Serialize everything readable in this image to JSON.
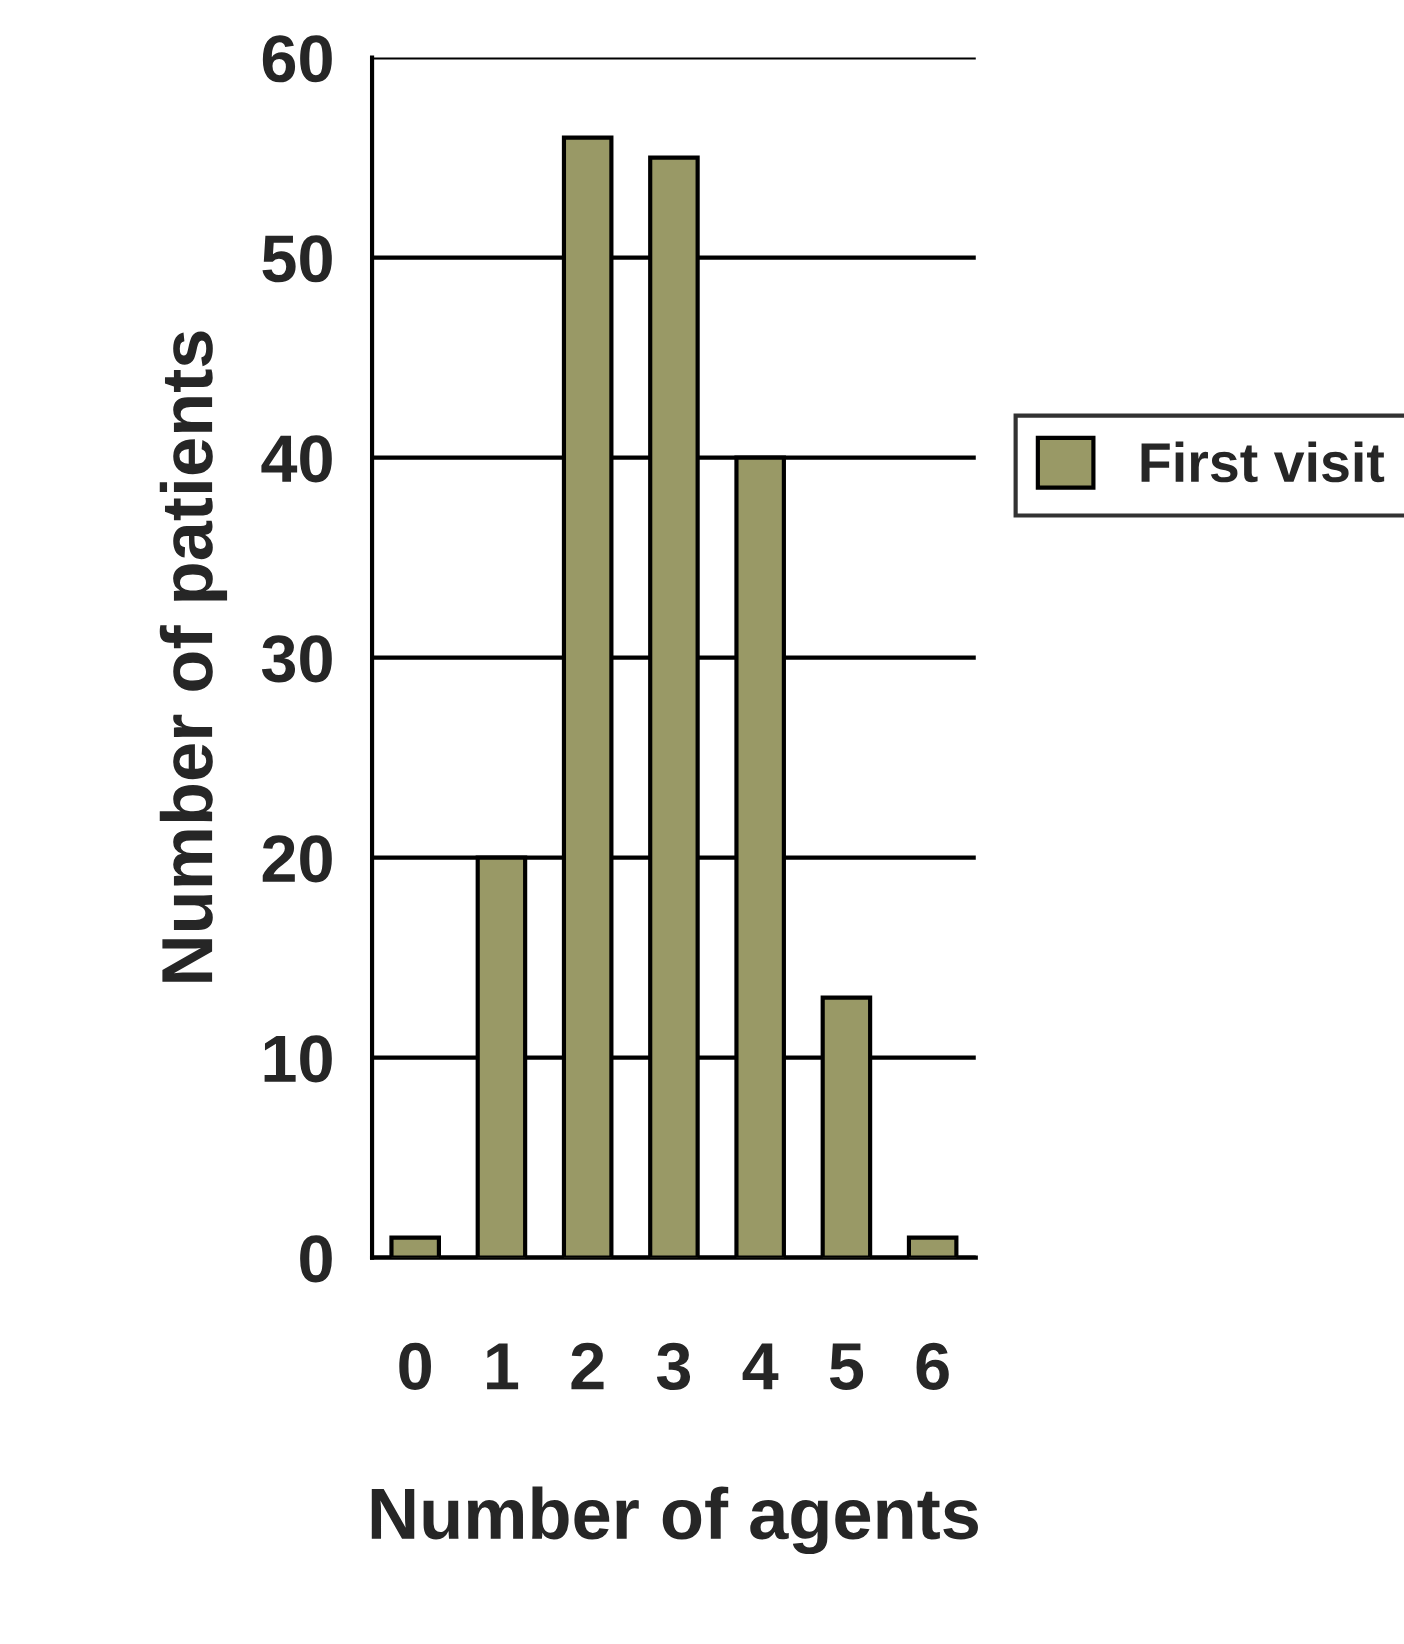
{
  "chart_data": {
    "type": "bar",
    "xlabel": "Number of agents",
    "ylabel": "Number of patients",
    "categories": [
      "0",
      "1",
      "2",
      "3",
      "4",
      "5",
      "6"
    ],
    "series": [
      {
        "name": "First visit",
        "color": "#999966",
        "values": [
          1,
          20,
          56,
          55,
          40,
          13,
          1
        ]
      }
    ],
    "ylim": [
      0,
      60
    ],
    "yticks": [
      0,
      10,
      20,
      30,
      40,
      50,
      60
    ],
    "grid": "y",
    "legend": "right"
  }
}
